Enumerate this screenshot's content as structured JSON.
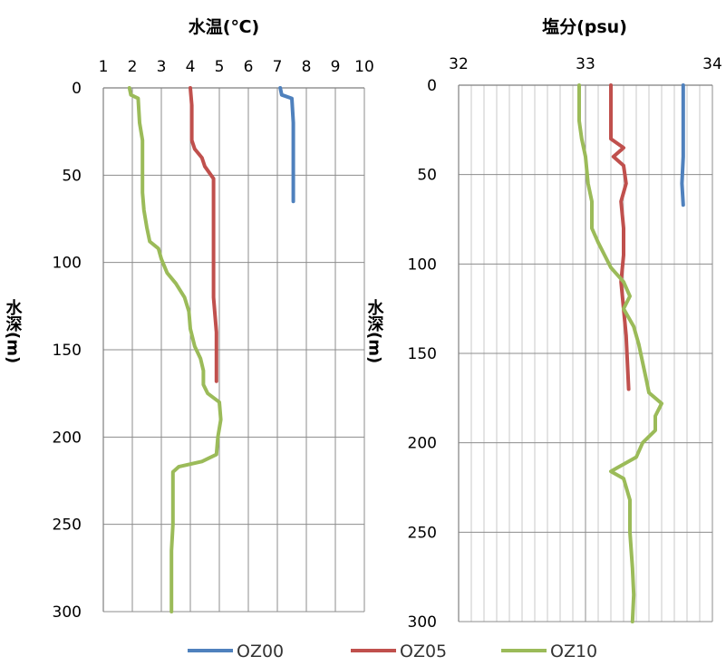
{
  "legend": {
    "items": [
      {
        "name": "OZ00",
        "color": "#4F81BD"
      },
      {
        "name": "OZ05",
        "color": "#C0504D"
      },
      {
        "name": "OZ10",
        "color": "#9BBB59"
      }
    ]
  },
  "chart_data": [
    {
      "type": "line",
      "title": "水温(℃)",
      "xlabel": "水温(℃)",
      "ylabel": "水深(m)",
      "xlim": [
        1,
        10
      ],
      "ylim": [
        0,
        300
      ],
      "y_inverted": true,
      "x_axis_position": "top",
      "x_ticks": [
        "1",
        "2",
        "3",
        "4",
        "5",
        "6",
        "7",
        "8",
        "9",
        "10"
      ],
      "y_ticks": [
        "0",
        "50",
        "100",
        "150",
        "200",
        "250",
        "300"
      ],
      "minor_x_gridlines": false,
      "grid": true,
      "series": [
        {
          "name": "OZ00",
          "points": [
            [
              7.1,
              0
            ],
            [
              7.15,
              4
            ],
            [
              7.5,
              6
            ],
            [
              7.55,
              20
            ],
            [
              7.55,
              40
            ],
            [
              7.55,
              55
            ],
            [
              7.55,
              65
            ]
          ]
        },
        {
          "name": "OZ05",
          "points": [
            [
              4.0,
              0
            ],
            [
              4.05,
              10
            ],
            [
              4.05,
              30
            ],
            [
              4.15,
              35
            ],
            [
              4.4,
              40
            ],
            [
              4.5,
              45
            ],
            [
              4.8,
              52
            ],
            [
              4.8,
              60
            ],
            [
              4.8,
              80
            ],
            [
              4.8,
              100
            ],
            [
              4.8,
              120
            ],
            [
              4.85,
              130
            ],
            [
              4.9,
              140
            ],
            [
              4.9,
              150
            ],
            [
              4.9,
              160
            ],
            [
              4.9,
              168
            ]
          ]
        },
        {
          "name": "OZ10",
          "points": [
            [
              1.9,
              0
            ],
            [
              1.95,
              4
            ],
            [
              2.2,
              6
            ],
            [
              2.25,
              20
            ],
            [
              2.35,
              30
            ],
            [
              2.35,
              45
            ],
            [
              2.35,
              60
            ],
            [
              2.4,
              70
            ],
            [
              2.5,
              80
            ],
            [
              2.6,
              88
            ],
            [
              2.9,
              92
            ],
            [
              3.0,
              98
            ],
            [
              3.2,
              106
            ],
            [
              3.5,
              112
            ],
            [
              3.8,
              120
            ],
            [
              3.95,
              128
            ],
            [
              4.0,
              138
            ],
            [
              4.15,
              148
            ],
            [
              4.35,
              155
            ],
            [
              4.45,
              162
            ],
            [
              4.45,
              170
            ],
            [
              4.6,
              175
            ],
            [
              5.0,
              180
            ],
            [
              5.05,
              190
            ],
            [
              4.95,
              200
            ],
            [
              4.9,
              210
            ],
            [
              4.4,
              214
            ],
            [
              3.6,
              217
            ],
            [
              3.4,
              220
            ],
            [
              3.4,
              232
            ],
            [
              3.4,
              250
            ],
            [
              3.35,
              265
            ],
            [
              3.35,
              285
            ],
            [
              3.35,
              300
            ]
          ]
        }
      ]
    },
    {
      "type": "line",
      "title": "塩分(psu)",
      "xlabel": "塩分(psu)",
      "ylabel": "水深(m)",
      "xlim": [
        32,
        34
      ],
      "ylim": [
        0,
        300
      ],
      "y_inverted": true,
      "x_axis_position": "top",
      "x_ticks": [
        "32",
        "33",
        "34"
      ],
      "y_ticks": [
        "0",
        "50",
        "100",
        "150",
        "200",
        "250",
        "300"
      ],
      "minor_x_gridlines": true,
      "grid": true,
      "series": [
        {
          "name": "OZ00",
          "points": [
            [
              33.77,
              0
            ],
            [
              33.77,
              20
            ],
            [
              33.77,
              40
            ],
            [
              33.76,
              55
            ],
            [
              33.77,
              67
            ]
          ]
        },
        {
          "name": "OZ05",
          "points": [
            [
              33.2,
              0
            ],
            [
              33.2,
              20
            ],
            [
              33.2,
              30
            ],
            [
              33.3,
              35
            ],
            [
              33.22,
              40
            ],
            [
              33.3,
              45
            ],
            [
              33.32,
              55
            ],
            [
              33.28,
              65
            ],
            [
              33.3,
              80
            ],
            [
              33.3,
              95
            ],
            [
              33.28,
              110
            ],
            [
              33.3,
              125
            ],
            [
              33.32,
              140
            ],
            [
              33.33,
              155
            ],
            [
              33.34,
              170
            ]
          ]
        },
        {
          "name": "OZ10",
          "points": [
            [
              32.95,
              0
            ],
            [
              32.95,
              20
            ],
            [
              32.97,
              30
            ],
            [
              33.0,
              40
            ],
            [
              33.02,
              55
            ],
            [
              33.05,
              65
            ],
            [
              33.05,
              80
            ],
            [
              33.1,
              88
            ],
            [
              33.15,
              95
            ],
            [
              33.2,
              102
            ],
            [
              33.3,
              110
            ],
            [
              33.35,
              118
            ],
            [
              33.3,
              125
            ],
            [
              33.38,
              135
            ],
            [
              33.42,
              145
            ],
            [
              33.45,
              155
            ],
            [
              33.48,
              165
            ],
            [
              33.5,
              172
            ],
            [
              33.6,
              178
            ],
            [
              33.55,
              185
            ],
            [
              33.55,
              193
            ],
            [
              33.45,
              200
            ],
            [
              33.4,
              208
            ],
            [
              33.25,
              214
            ],
            [
              33.2,
              216
            ],
            [
              33.3,
              220
            ],
            [
              33.35,
              232
            ],
            [
              33.35,
              250
            ],
            [
              33.37,
              270
            ],
            [
              33.38,
              285
            ],
            [
              33.37,
              300
            ]
          ]
        }
      ]
    }
  ]
}
